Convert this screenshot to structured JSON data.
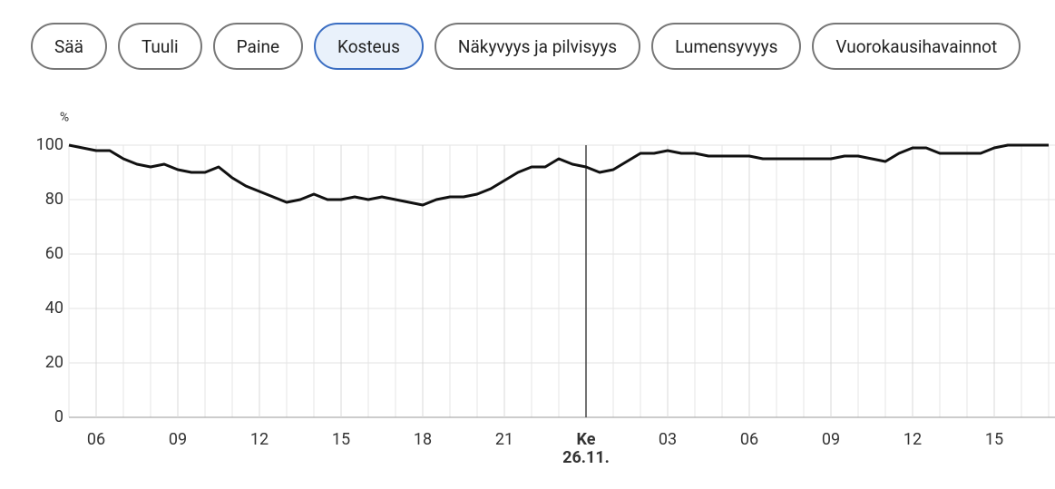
{
  "tabs": {
    "items": [
      "Sää",
      "Tuuli",
      "Paine",
      "Kosteus",
      "Näkyvyys ja pilvisyys",
      "Lumensyvyys",
      "Vuorokausihavainnot"
    ],
    "active": 3
  },
  "chart_data": {
    "type": "line",
    "ylabel": "%",
    "x": [
      5.0,
      5.5,
      6.0,
      6.5,
      7.0,
      7.5,
      8.0,
      8.5,
      9.0,
      9.5,
      10.0,
      10.5,
      11.0,
      11.5,
      12.0,
      12.5,
      13.0,
      13.5,
      14.0,
      14.5,
      15.0,
      15.5,
      16.0,
      16.5,
      17.0,
      17.5,
      18.0,
      18.5,
      19.0,
      19.5,
      20.0,
      20.5,
      21.0,
      21.5,
      22.0,
      22.5,
      23.0,
      23.5,
      24.0,
      24.5,
      25.0,
      25.5,
      26.0,
      26.5,
      27.0,
      27.5,
      28.0,
      28.5,
      29.0,
      29.5,
      30.0,
      30.5,
      31.0,
      31.5,
      32.0,
      32.5,
      33.0,
      33.5,
      34.0,
      34.5,
      35.0,
      35.5,
      36.0,
      36.5,
      37.0,
      37.5,
      38.0,
      38.5,
      39.0,
      39.5,
      40.0,
      40.5,
      41.0
    ],
    "series": [
      {
        "color": "#111111",
        "values": [
          100,
          99,
          98,
          98,
          95,
          93,
          92,
          93,
          91,
          90,
          90,
          92,
          88,
          85,
          83,
          81,
          79,
          80,
          82,
          80,
          80,
          81,
          80,
          81,
          80,
          79,
          78,
          80,
          81,
          81,
          82,
          84,
          87,
          90,
          92,
          92,
          95,
          93,
          92,
          90,
          91,
          94,
          97,
          97,
          98,
          97,
          97,
          96,
          96,
          96,
          96,
          95,
          95,
          95,
          95,
          95,
          95,
          96,
          96,
          95,
          94,
          97,
          99,
          99,
          97,
          97,
          97,
          97,
          99,
          100,
          100,
          100,
          100
        ]
      }
    ],
    "xlim": [
      5.0,
      41.25
    ],
    "xticks": [
      {
        "value": 6,
        "label": "06"
      },
      {
        "value": 9,
        "label": "09"
      },
      12,
      15,
      18,
      21,
      {
        "value": 24,
        "label": "Ke",
        "date": "26.11."
      },
      {
        "value": 27,
        "label": "03"
      },
      {
        "value": 30,
        "label": "06"
      },
      {
        "value": 33,
        "label": "09"
      },
      {
        "value": 36,
        "label": "12"
      },
      {
        "value": 39,
        "label": "15"
      }
    ],
    "ylim": [
      0,
      100
    ],
    "yticks": [
      0,
      20,
      40,
      60,
      80,
      100
    ],
    "grid": true
  }
}
